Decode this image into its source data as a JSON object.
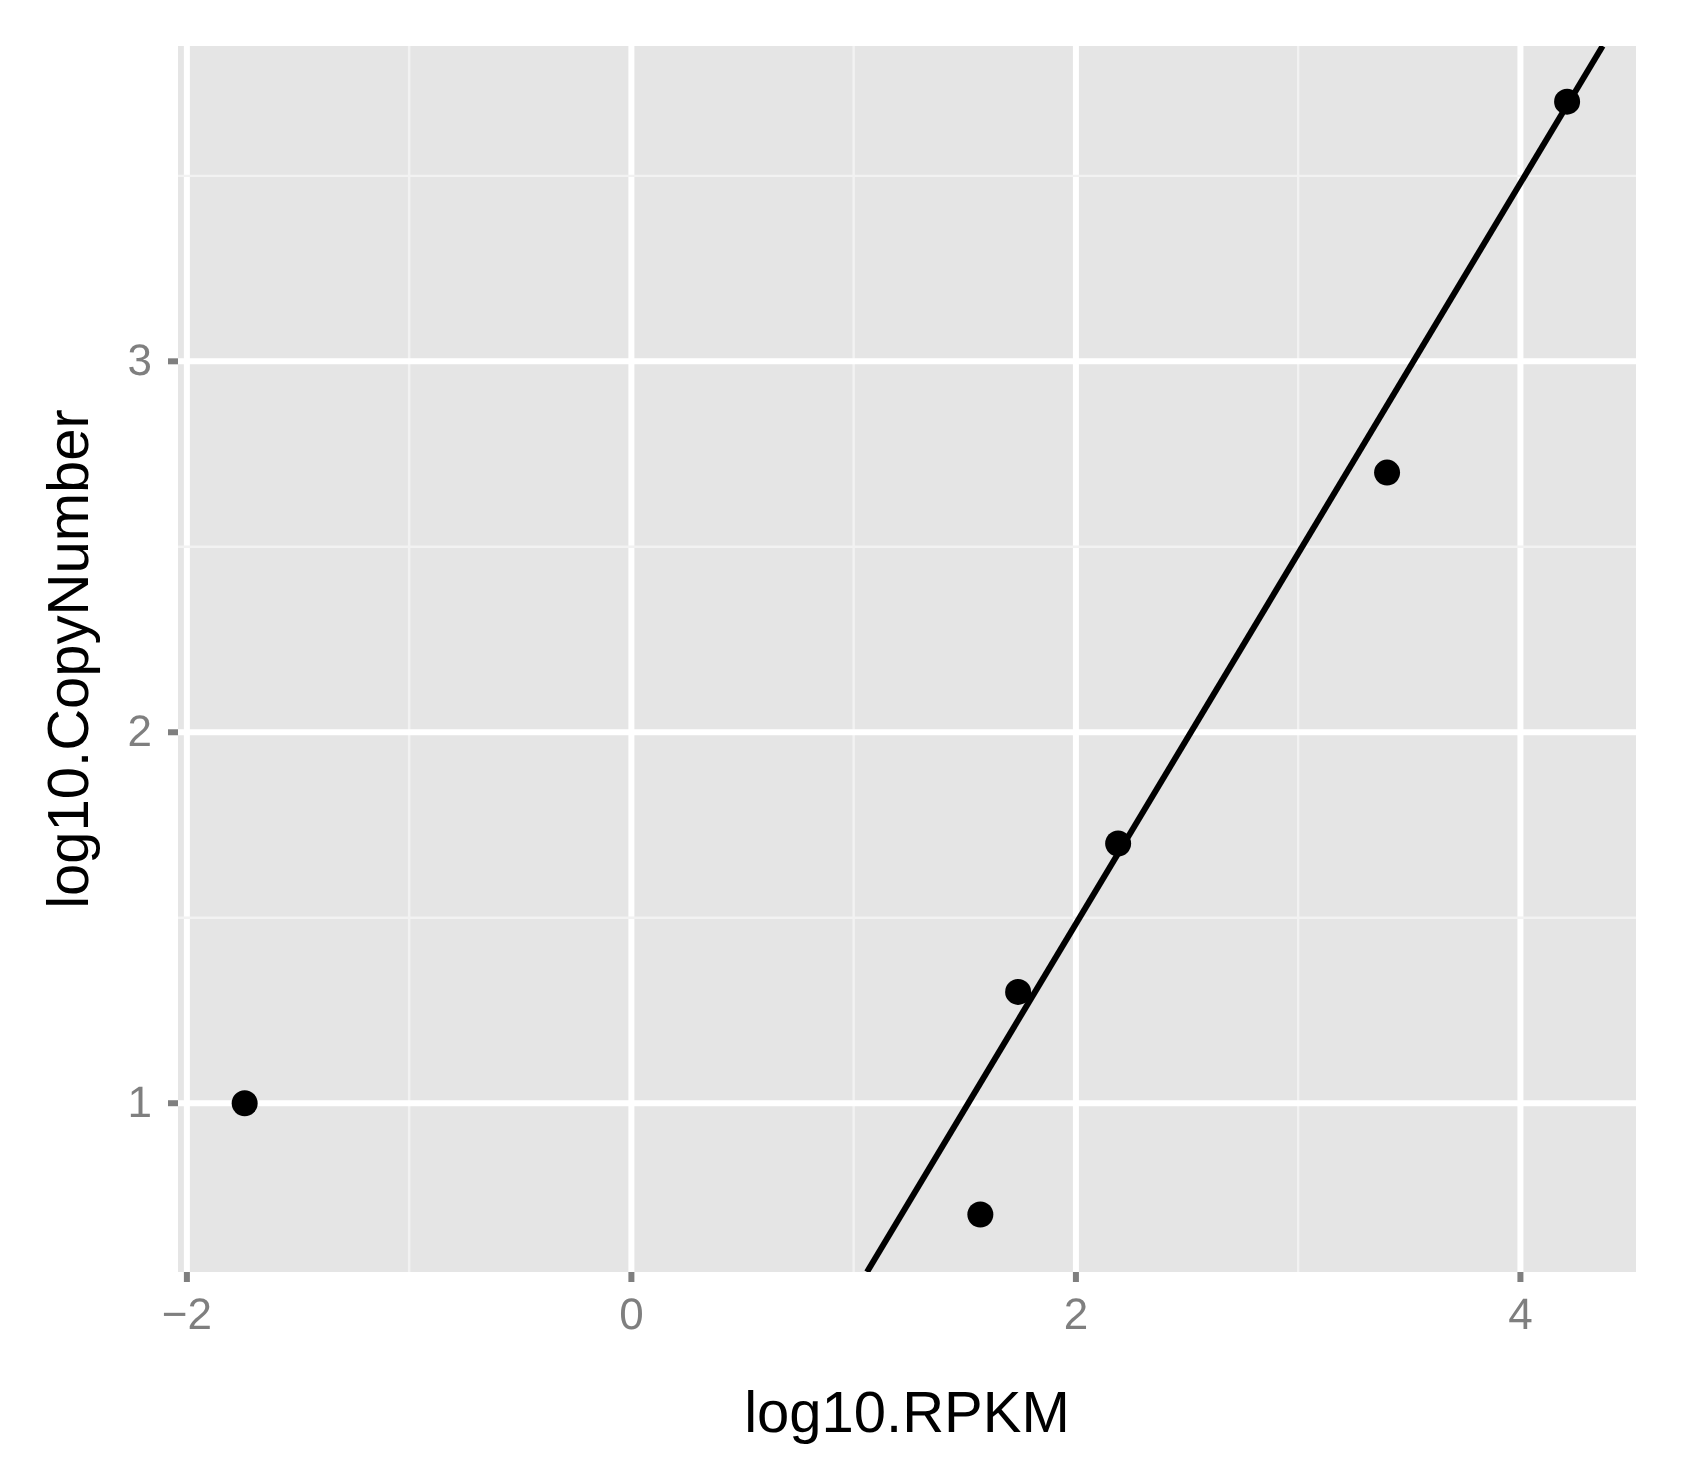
{
  "chart_data": {
    "type": "scatter",
    "xlabel": "log10.RPKM",
    "ylabel": "log10.CopyNumber",
    "xlim": [
      -2.04,
      4.52
    ],
    "ylim": [
      0.545,
      3.85
    ],
    "xticks": [
      {
        "value": -2,
        "label": "−2"
      },
      0,
      2,
      4
    ],
    "yticks": [
      1,
      2,
      3
    ],
    "grid": true,
    "series": [
      {
        "color": "#000000",
        "marker": "circle",
        "x": [
          -1.74,
          1.57,
          1.74,
          2.19,
          3.4,
          4.21
        ],
        "values": [
          1.0,
          0.7,
          1.3,
          1.7,
          2.7,
          3.7
        ]
      },
      {
        "type": "line",
        "color": "#000000",
        "x": [
          1.06,
          4.37
        ],
        "values": [
          0.545,
          3.85
        ]
      }
    ]
  }
}
